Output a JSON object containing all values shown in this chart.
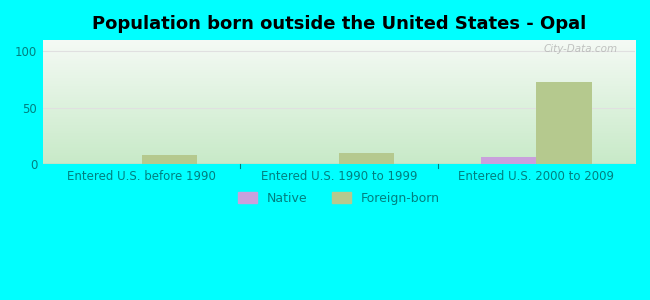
{
  "title": "Population born outside the United States - Opal",
  "background_color": "#00FFFF",
  "plot_bg_top": "#f5faf5",
  "plot_bg_bottom": "#c8eac8",
  "categories": [
    "Entered U.S. before 1990",
    "Entered U.S. 1990 to 1999",
    "Entered U.S. 2000 to 2009"
  ],
  "native_values": [
    0,
    0,
    6
  ],
  "foreign_values": [
    8,
    10,
    73
  ],
  "native_color": "#c9a0dc",
  "foreign_color": "#b5c98e",
  "ylim": [
    0,
    110
  ],
  "yticks": [
    0,
    50,
    100
  ],
  "label_color": "#008080",
  "grid_color": "#e0e0e0",
  "watermark": "City-Data.com",
  "bar_width": 0.28,
  "title_fontsize": 13,
  "axis_label_fontsize": 8.5,
  "legend_fontsize": 9
}
